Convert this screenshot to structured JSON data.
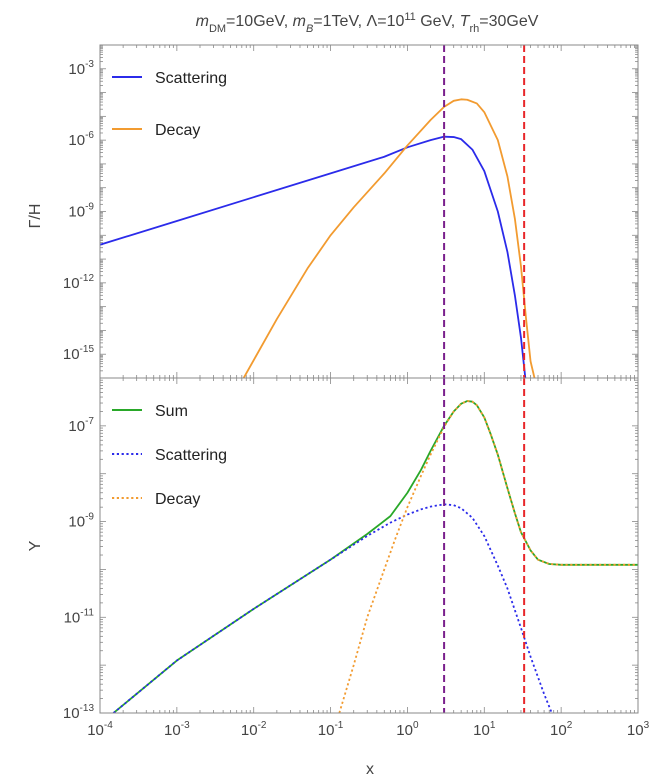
{
  "title": {
    "segments": [
      {
        "text": "m",
        "style": "italic"
      },
      {
        "text": "DM",
        "style": "sub"
      },
      {
        "text": "=10GeV, ",
        "style": "normal"
      },
      {
        "text": "m",
        "style": "italic"
      },
      {
        "text": "B",
        "style": "sub-italic"
      },
      {
        "text": "=1TeV, Λ=10",
        "style": "normal"
      },
      {
        "text": "11",
        "style": "sup"
      },
      {
        "text": " GeV, ",
        "style": "normal"
      },
      {
        "text": "T",
        "style": "italic"
      },
      {
        "text": "rh",
        "style": "sub"
      },
      {
        "text": "=30GeV",
        "style": "normal"
      }
    ]
  },
  "xlabel": "x",
  "colors": {
    "scattering": "#2b2bea",
    "decay": "#f29b30",
    "sum": "#29a829",
    "purple_line": "#7a1f8c",
    "red_line": "#e8262a",
    "frame": "#888888"
  },
  "chart_data": [
    {
      "type": "line",
      "name": "top",
      "ylabel": "Γ/H",
      "xscale": "log",
      "yscale": "log",
      "xlim": [
        0.0001,
        1000
      ],
      "ylim": [
        1e-16,
        0.01
      ],
      "yticks": [
        {
          "base": "10",
          "exp": "-3",
          "value": 0.001
        },
        {
          "base": "10",
          "exp": "-6",
          "value": 1e-06
        },
        {
          "base": "10",
          "exp": "-9",
          "value": 1e-09
        },
        {
          "base": "10",
          "exp": "-12",
          "value": 1e-12
        },
        {
          "base": "10",
          "exp": "-15",
          "value": 1e-15
        }
      ],
      "legend_position": "top-left",
      "series": [
        {
          "name": "Scattering",
          "style": "solid",
          "color_key": "scattering",
          "x": [
            0.0001,
            0.001,
            0.01,
            0.1,
            0.5,
            1.0,
            2.0,
            3.0,
            4.0,
            5.0,
            7.0,
            10.0,
            15.0,
            20.0,
            25.0,
            30.0,
            35.0
          ],
          "y": [
            4e-11,
            4e-10,
            4e-09,
            4e-08,
            2e-07,
            5e-07,
            1e-06,
            1.4e-06,
            1.35e-06,
            1.1e-06,
            4e-07,
            5e-08,
            1e-09,
            2e-11,
            3e-13,
            5e-15,
            5e-17
          ]
        },
        {
          "name": "Decay",
          "style": "solid",
          "color_key": "decay",
          "x": [
            0.0074,
            0.02,
            0.05,
            0.1,
            0.2,
            0.5,
            1.0,
            2.0,
            3.0,
            4.0,
            5.0,
            6.0,
            8.0,
            10.0,
            15.0,
            20.0,
            25.0,
            30.0,
            35.0,
            40.0,
            45.0
          ],
          "y": [
            1e-16,
            3e-14,
            4e-12,
            1e-10,
            1.5e-09,
            4e-08,
            6e-07,
            7e-06,
            2.5e-05,
            4.5e-05,
            5.2e-05,
            5e-05,
            3.5e-05,
            1.5e-05,
            1e-06,
            3e-08,
            5e-10,
            5e-12,
            3e-14,
            5e-16,
            1e-16
          ]
        }
      ],
      "vlines": [
        {
          "x": 3.0,
          "color_key": "purple_line",
          "style": "dashed"
        },
        {
          "x": 33.0,
          "color_key": "red_line",
          "style": "dashed"
        }
      ]
    },
    {
      "type": "line",
      "name": "bottom",
      "ylabel": "Y",
      "xscale": "log",
      "yscale": "log",
      "xlim": [
        0.0001,
        1000
      ],
      "ylim": [
        1e-13,
        1e-06
      ],
      "yticks": [
        {
          "base": "10",
          "exp": "-7",
          "value": 1e-07
        },
        {
          "base": "10",
          "exp": "-9",
          "value": 1e-09
        },
        {
          "base": "10",
          "exp": "-11",
          "value": 1e-11
        },
        {
          "base": "10",
          "exp": "-13",
          "value": 1e-13
        }
      ],
      "xticks": [
        {
          "base": "10",
          "exp": "-4",
          "value": 0.0001
        },
        {
          "base": "10",
          "exp": "-3",
          "value": 0.001
        },
        {
          "base": "10",
          "exp": "-2",
          "value": 0.01
        },
        {
          "base": "10",
          "exp": "-1",
          "value": 0.1
        },
        {
          "base": "10",
          "exp": "0",
          "value": 1
        },
        {
          "base": "10",
          "exp": "1",
          "value": 10
        },
        {
          "base": "10",
          "exp": "2",
          "value": 100
        },
        {
          "base": "10",
          "exp": "3",
          "value": 1000
        }
      ],
      "legend_position": "top-left",
      "series": [
        {
          "name": "Sum",
          "style": "solid",
          "color_key": "sum",
          "x": [
            0.00015,
            0.001,
            0.01,
            0.1,
            0.3,
            0.6,
            1.0,
            1.5,
            2.0,
            3.0,
            4.0,
            5.0,
            6.0,
            7.0,
            8.0,
            10.0,
            12.0,
            15.0,
            20.0,
            25.0,
            30.0,
            40.0,
            50.0,
            70.0,
            100.0,
            200.0,
            1000.0
          ],
          "y": [
            1e-13,
            1.25e-12,
            1.5e-11,
            1.6e-10,
            5.5e-10,
            1.3e-09,
            4e-09,
            1.2e-08,
            3e-08,
            1e-07,
            2e-07,
            2.9e-07,
            3.3e-07,
            3.2e-07,
            2.7e-07,
            1.5e-07,
            7e-08,
            2.5e-08,
            5e-09,
            1.5e-09,
            6e-10,
            2.5e-10,
            1.6e-10,
            1.3e-10,
            1.25e-10,
            1.25e-10,
            1.25e-10
          ]
        },
        {
          "name": "Scattering",
          "style": "dotted",
          "color_key": "scattering",
          "x": [
            0.00015,
            0.001,
            0.01,
            0.1,
            0.3,
            0.6,
            1.0,
            1.5,
            2.0,
            3.0,
            4.0,
            5.0,
            7.0,
            10.0,
            15.0,
            20.0,
            30.0,
            40.0,
            60.0,
            80.0,
            100.0,
            200.0,
            1000.0
          ],
          "y": [
            1e-13,
            1.25e-12,
            1.5e-11,
            1.6e-10,
            5e-10,
            9.5e-10,
            1.4e-09,
            1.8e-09,
            2.05e-09,
            2.3e-09,
            2.2e-09,
            1.9e-09,
            1.2e-09,
            5e-10,
            1.2e-10,
            4e-11,
            6e-12,
            1.5e-12,
            2.5e-13,
            8e-14,
            5.5e-14,
            4.5e-14,
            4.5e-14
          ]
        },
        {
          "name": "Decay",
          "style": "dotted",
          "color_key": "decay",
          "x": [
            0.13,
            0.2,
            0.3,
            0.5,
            0.7,
            1.0,
            1.5,
            2.0,
            3.0,
            4.0,
            5.0,
            6.0,
            7.0,
            8.0,
            10.0,
            12.0,
            15.0,
            20.0,
            25.0,
            30.0,
            40.0,
            50.0,
            70.0,
            100.0,
            200.0,
            1000.0
          ],
          "y": [
            1e-13,
            1e-12,
            1e-11,
            1e-10,
            4.5e-10,
            2e-09,
            9e-09,
            2.5e-08,
            9.5e-08,
            2e-07,
            2.9e-07,
            3.3e-07,
            3.2e-07,
            2.7e-07,
            1.5e-07,
            7e-08,
            2.5e-08,
            5e-09,
            1.5e-09,
            6e-10,
            2.5e-10,
            1.6e-10,
            1.3e-10,
            1.25e-10,
            1.25e-10,
            1.25e-10
          ]
        }
      ],
      "vlines": [
        {
          "x": 3.0,
          "color_key": "purple_line",
          "style": "dashed"
        },
        {
          "x": 33.0,
          "color_key": "red_line",
          "style": "dashed"
        }
      ]
    }
  ]
}
